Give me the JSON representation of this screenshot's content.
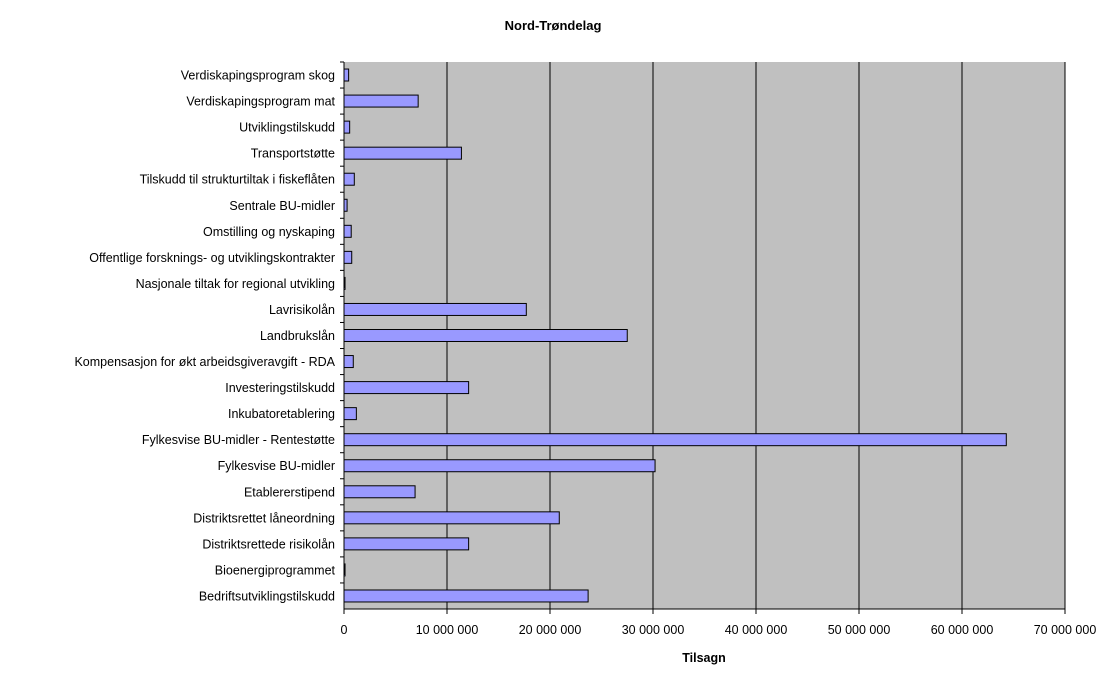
{
  "chart_data": {
    "type": "bar",
    "orientation": "horizontal",
    "title": "Nord-Trøndelag",
    "xlabel": "Tilsagn",
    "ylabel": "",
    "xlim": [
      0,
      70000000
    ],
    "x_ticks": [
      0,
      10000000,
      20000000,
      30000000,
      40000000,
      50000000,
      60000000,
      70000000
    ],
    "x_tick_labels": [
      "0",
      "10 000 000",
      "20 000 000",
      "30 000 000",
      "40 000 000",
      "50 000 000",
      "60 000 000",
      "70 000 000"
    ],
    "grid": "vertical",
    "legend": "none",
    "categories": [
      "Verdiskapingsprogram skog",
      "Verdiskapingsprogram mat",
      "Utviklingstilskudd",
      "Transportstøtte",
      "Tilskudd til strukturtiltak i fiskeflåten",
      "Sentrale BU-midler",
      "Omstilling og nyskaping",
      "Offentlige forsknings- og utviklingskontrakter",
      "Nasjonale tiltak for regional utvikling",
      "Lavrisikolån",
      "Landbrukslån",
      "Kompensasjon for økt arbeidsgiveravgift - RDA",
      "Investeringstilskudd",
      "Inkubatoretablering",
      "Fylkesvise BU-midler - Rentestøtte",
      "Fylkesvise BU-midler",
      "Etablererstipend",
      "Distriktsrettet låneordning",
      "Distriktsrettede risikolån",
      "Bioenergiprogrammet",
      "Bedriftsutviklingstilskudd"
    ],
    "values": [
      450000,
      7200000,
      550000,
      11400000,
      1000000,
      300000,
      700000,
      750000,
      100000,
      17700000,
      27500000,
      900000,
      12100000,
      1200000,
      64300000,
      30200000,
      6900000,
      20900000,
      12100000,
      100000,
      23700000
    ],
    "colors": {
      "bar_fill": "#9999ff",
      "bar_stroke": "#000000",
      "plot_background": "#c0c0c0",
      "gridline": "#000000"
    }
  }
}
